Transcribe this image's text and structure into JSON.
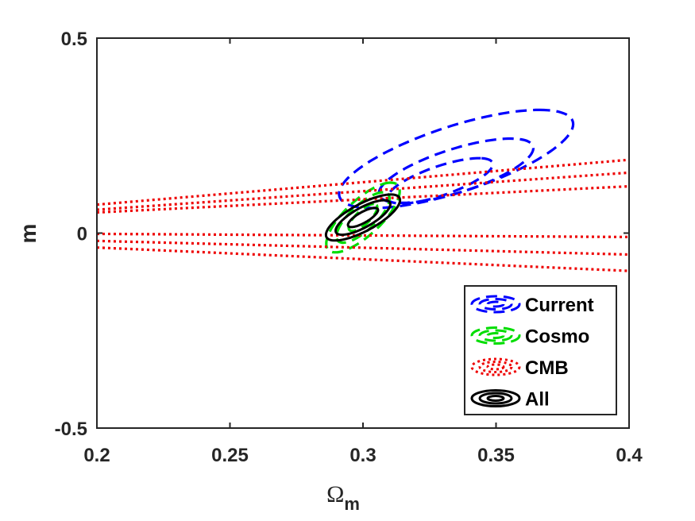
{
  "chart_data": {
    "type": "contour",
    "title": "",
    "xlabel": "Ω",
    "xlabel_subscript": "m",
    "ylabel": "m",
    "xlim": [
      0.2,
      0.4
    ],
    "ylim": [
      -0.5,
      0.5
    ],
    "xticks": [
      {
        "value": 0.2,
        "label": "0.2"
      },
      {
        "value": 0.25,
        "label": "0.25"
      },
      {
        "value": 0.3,
        "label": "0.3"
      },
      {
        "value": 0.35,
        "label": "0.35"
      },
      {
        "value": 0.4,
        "label": "0.4"
      }
    ],
    "yticks": [
      {
        "value": 0.5,
        "label": "0.5"
      },
      {
        "value": 0,
        "label": "0"
      },
      {
        "value": -0.5,
        "label": "-0.5"
      }
    ],
    "grid": false,
    "legend_position": "bottom-right",
    "series": [
      {
        "name": "Current",
        "color": "#0000ff",
        "style": "dashed",
        "contours": [
          {
            "kind": "ellipse",
            "center": [
              0.329,
              0.134
            ],
            "a": 0.06,
            "b": 0.013,
            "slope": 3.8
          },
          {
            "kind": "ellipse",
            "center": [
              0.335,
              0.16
            ],
            "a": 0.085,
            "b": 0.02,
            "slope": 3.8
          },
          {
            "kind": "ellipse",
            "center": [
              0.335,
              0.19
            ],
            "a": 0.13,
            "b": 0.03,
            "slope": 3.8
          }
        ]
      },
      {
        "name": "Cosmo",
        "color": "#00dd00",
        "style": "dashed",
        "contours": [
          {
            "kind": "ellipse",
            "center": [
              0.3,
              0.04
            ],
            "a": 0.035,
            "b": 0.0035,
            "slope": 8.5
          },
          {
            "kind": "ellipse",
            "center": [
              0.3,
              0.04
            ],
            "a": 0.065,
            "b": 0.0065,
            "slope": 8.5
          },
          {
            "kind": "ellipse",
            "center": [
              0.3,
              0.04
            ],
            "a": 0.09,
            "b": 0.009,
            "slope": 8.5
          }
        ]
      },
      {
        "name": "CMB",
        "color": "#ee0000",
        "style": "dotted",
        "contours": [
          {
            "kind": "line",
            "points": [
              [
                0.2,
                0.053
              ],
              [
                0.4,
                0.12
              ]
            ]
          },
          {
            "kind": "line",
            "points": [
              [
                0.2,
                0.06
              ],
              [
                0.4,
                0.155
              ]
            ]
          },
          {
            "kind": "line",
            "points": [
              [
                0.2,
                0.073
              ],
              [
                0.4,
                0.188
              ]
            ]
          },
          {
            "kind": "line",
            "points": [
              [
                0.2,
                -0.002
              ],
              [
                0.4,
                -0.01
              ]
            ]
          },
          {
            "kind": "line",
            "points": [
              [
                0.2,
                -0.02
              ],
              [
                0.4,
                -0.055
              ]
            ]
          },
          {
            "kind": "line",
            "points": [
              [
                0.2,
                -0.037
              ],
              [
                0.4,
                -0.097
              ]
            ]
          }
        ]
      },
      {
        "name": "All",
        "color": "#000000",
        "style": "solid",
        "contours": [
          {
            "kind": "ellipse",
            "center": [
              0.3,
              0.04
            ],
            "a": 0.025,
            "b": 0.0035,
            "slope": 5.5
          },
          {
            "kind": "ellipse",
            "center": [
              0.3,
              0.04
            ],
            "a": 0.045,
            "b": 0.0065,
            "slope": 5.5
          },
          {
            "kind": "ellipse",
            "center": [
              0.3,
              0.04
            ],
            "a": 0.06,
            "b": 0.009,
            "slope": 5.5
          }
        ]
      }
    ]
  }
}
